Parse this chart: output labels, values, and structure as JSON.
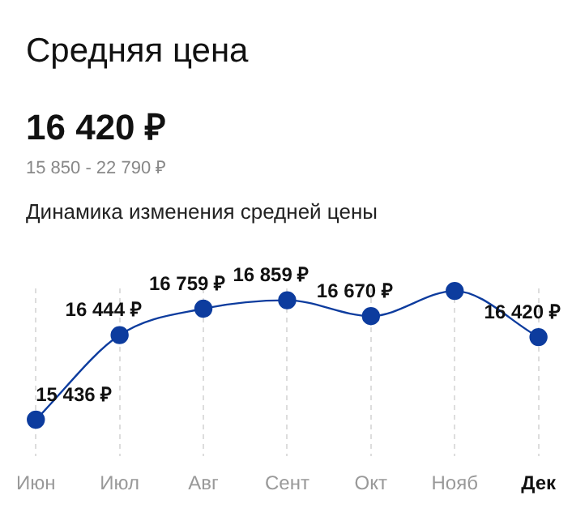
{
  "chart_data": {
    "type": "line",
    "title": "Средняя цена",
    "subtitle": "16 420 ₽",
    "annotations": [
      "15 850 - 22 790 ₽",
      "Динамика изменения средней цены"
    ],
    "categories": [
      "Июн",
      "Июл",
      "Авг",
      "Сент",
      "Окт",
      "Нояб",
      "Дек"
    ],
    "series": [
      {
        "color": "#0d3c9e",
        "values": [
          15436,
          16444,
          16759,
          16859,
          16670,
          16970,
          16420
        ],
        "value_labels": [
          "15 436 ₽",
          "16 444 ₽",
          "16 759 ₽",
          "16 859 ₽",
          "16 670 ₽",
          null,
          "16 420 ₽"
        ]
      }
    ],
    "grid": "x",
    "marker": "circle",
    "line_style": "solid",
    "legend": false
  }
}
